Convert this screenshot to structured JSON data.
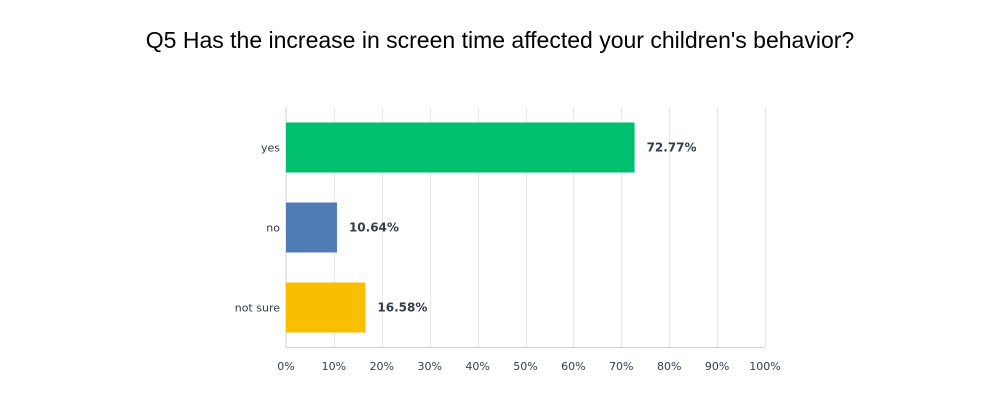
{
  "chart_data": {
    "type": "bar",
    "orientation": "horizontal",
    "title": "Q5 Has the increase in screen time affected your children's behavior?",
    "categories": [
      "yes",
      "no",
      "not sure"
    ],
    "values": [
      72.77,
      10.64,
      16.58
    ],
    "value_labels": [
      "72.77%",
      "10.64%",
      "16.58%"
    ],
    "bar_colors": [
      "#00bf6f",
      "#507cb6",
      "#f9be00"
    ],
    "x_ticks": [
      "0%",
      "10%",
      "20%",
      "30%",
      "40%",
      "50%",
      "60%",
      "70%",
      "80%",
      "90%",
      "100%"
    ],
    "xlim": [
      0,
      100
    ],
    "grid": true
  }
}
